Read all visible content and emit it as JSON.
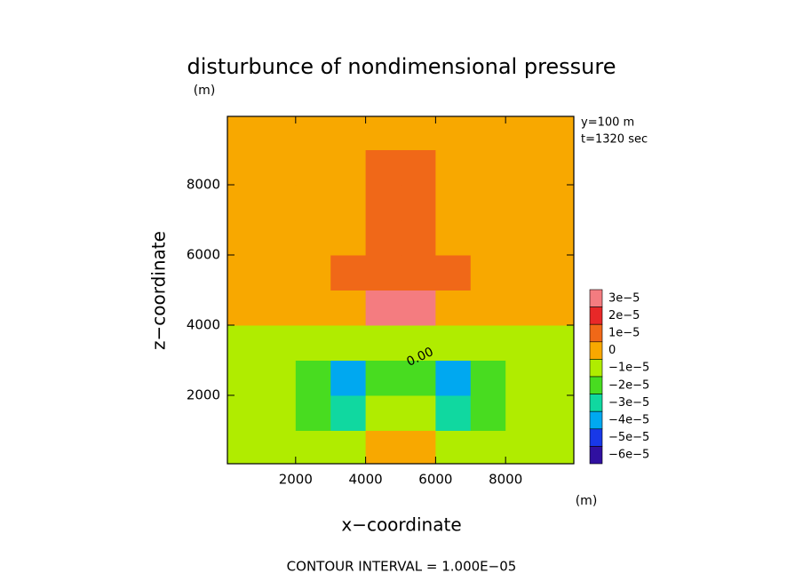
{
  "chart_data": {
    "type": "contour",
    "title": "disturbunce of nondimensional pressure",
    "x_label": "x−coordinate",
    "y_label": "z−coordinate",
    "x_unit": "(m)",
    "y_unit": "(m)",
    "annotations": [
      "y=100 m",
      "t=1320 sec"
    ],
    "contour_label": "0.00",
    "footer": "CONTOUR INTERVAL = 1.000E−05",
    "xlim": [
      50,
      9950
    ],
    "ylim": [
      50,
      9950
    ],
    "xticks": [
      2000,
      4000,
      6000,
      8000
    ],
    "yticks": [
      2000,
      4000,
      6000,
      8000
    ],
    "x": [
      500,
      1500,
      2500,
      3500,
      4500,
      5500,
      6500,
      7500,
      8500,
      9500
    ],
    "y": [
      500,
      1500,
      2500,
      3500,
      4500,
      5500,
      6500,
      7500,
      8500,
      9500
    ],
    "z": [
      [
        -4e-06,
        -5e-06,
        -7e-06,
        -1e-05,
        2e-06,
        2e-06,
        -1e-05,
        -7e-06,
        -5e-06,
        -4e-06
      ],
      [
        -4e-06,
        -6e-06,
        -1.3e-05,
        -3e-05,
        -1e-05,
        -1e-05,
        -3e-05,
        -1.3e-05,
        -6e-06,
        -4e-06
      ],
      [
        -4e-06,
        -6e-06,
        -1.5e-05,
        -4e-05,
        -2e-05,
        -2e-05,
        -4e-05,
        -1.5e-05,
        -6e-06,
        -4e-06
      ],
      [
        -2e-06,
        -3e-06,
        -5e-06,
        -1e-05,
        -5e-06,
        -5e-06,
        -1e-05,
        -5e-06,
        -3e-06,
        -2e-06
      ],
      [
        1e-06,
        2e-06,
        3e-06,
        8e-06,
        3e-05,
        3e-05,
        8e-06,
        3e-06,
        2e-06,
        1e-06
      ],
      [
        2e-06,
        3e-06,
        5e-06,
        1e-05,
        1.7e-05,
        1.7e-05,
        1e-05,
        5e-06,
        3e-06,
        2e-06
      ],
      [
        3e-06,
        4e-06,
        6e-06,
        9e-06,
        1.3e-05,
        1.3e-05,
        9e-06,
        6e-06,
        4e-06,
        3e-06
      ],
      [
        4e-06,
        5e-06,
        7e-06,
        9e-06,
        1.1e-05,
        1.1e-05,
        9e-06,
        7e-06,
        5e-06,
        4e-06
      ],
      [
        5e-06,
        6e-06,
        8e-06,
        9e-06,
        1e-05,
        1e-05,
        9e-06,
        8e-06,
        6e-06,
        5e-06
      ],
      [
        6e-06,
        7e-06,
        8e-06,
        9e-06,
        9e-06,
        9e-06,
        9e-06,
        8e-06,
        7e-06,
        6e-06
      ]
    ],
    "levels": [
      {
        "value": 3e-05,
        "label": "3e−5"
      },
      {
        "value": 2e-05,
        "label": "2e−5"
      },
      {
        "value": 1e-05,
        "label": "1e−5"
      },
      {
        "value": 0,
        "label": "0"
      },
      {
        "value": -1e-05,
        "label": "−1e−5"
      },
      {
        "value": -2e-05,
        "label": "−2e−5"
      },
      {
        "value": -3e-05,
        "label": "−3e−5"
      },
      {
        "value": -4e-05,
        "label": "−4e−5"
      },
      {
        "value": -5e-05,
        "label": "−5e−5"
      },
      {
        "value": -6e-05,
        "label": "−6e−5"
      }
    ],
    "level_colors": [
      "#f47c80",
      "#e82828",
      "#f06818",
      "#f8a800",
      "#b0ec00",
      "#48dc20",
      "#10d8a0",
      "#00a8f0",
      "#1838e8",
      "#3010a0"
    ]
  }
}
